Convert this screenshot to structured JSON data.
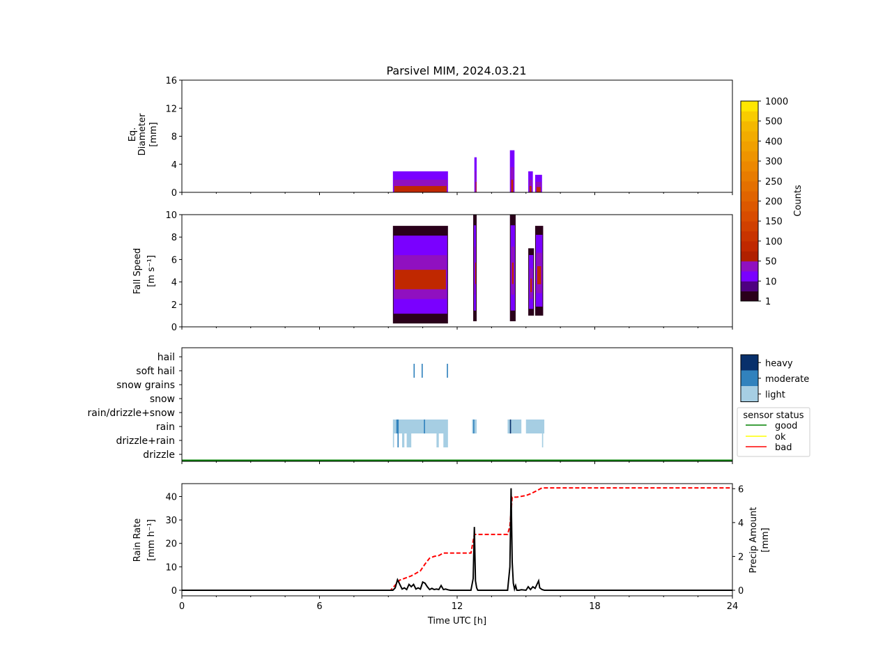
{
  "title": "Parsivel MIM, 2024.03.21",
  "xlabel": "Time UTC [h]",
  "colors": {
    "good": "#008000",
    "ok": "#ffff00",
    "bad": "#ff0000",
    "rain_rate_line": "#000000",
    "precip_line": "#ff0000"
  },
  "chart_data": [
    {
      "type": "heatmap",
      "name": "diameter",
      "ylabel_lines": [
        "Eq.",
        "Diameter",
        "[mm]"
      ],
      "xlim": [
        0,
        24
      ],
      "ylim": [
        0,
        16
      ],
      "xticks": [
        0,
        6,
        12,
        18,
        24
      ],
      "yticks": [
        0,
        4,
        8,
        12,
        16
      ],
      "blocks": [
        {
          "t0": 9.2,
          "t1": 11.6,
          "ymax": 3.0,
          "level": "moderate"
        },
        {
          "t0": 12.75,
          "t1": 12.85,
          "ymax": 5.0,
          "level": "moderate"
        },
        {
          "t0": 14.3,
          "t1": 14.5,
          "ymax": 6.0,
          "level": "moderate"
        },
        {
          "t0": 15.1,
          "t1": 15.3,
          "ymax": 3.0,
          "level": "moderate"
        },
        {
          "t0": 15.4,
          "t1": 15.7,
          "ymax": 2.5,
          "level": "moderate"
        }
      ]
    },
    {
      "type": "heatmap",
      "name": "fall_speed",
      "ylabel_lines": [
        "Fall Speed",
        "[m s⁻¹]"
      ],
      "xlim": [
        0,
        24
      ],
      "ylim": [
        0,
        10
      ],
      "xticks": [
        0,
        6,
        12,
        18,
        24
      ],
      "yticks": [
        0,
        2,
        4,
        6,
        8,
        10
      ],
      "blocks": [
        {
          "t0": 9.2,
          "t1": 11.6,
          "ymin": 0.3,
          "ymax": 9.0
        },
        {
          "t0": 12.7,
          "t1": 12.85,
          "ymin": 0.5,
          "ymax": 10.0
        },
        {
          "t0": 14.3,
          "t1": 14.55,
          "ymin": 0.5,
          "ymax": 10.0
        },
        {
          "t0": 15.1,
          "t1": 15.35,
          "ymin": 1.0,
          "ymax": 7.0
        },
        {
          "t0": 15.4,
          "t1": 15.75,
          "ymin": 1.0,
          "ymax": 9.0
        }
      ]
    },
    {
      "type": "heatmap",
      "name": "precip_type",
      "categories": [
        "drizzle",
        "drizzle+rain",
        "rain",
        "rain/drizzle+snow",
        "snow",
        "snow grains",
        "soft hail",
        "hail"
      ],
      "xlim": [
        0,
        24
      ],
      "xticks": [
        0,
        6,
        12,
        18,
        24
      ],
      "intensity_legend": [
        "heavy",
        "moderate",
        "light"
      ],
      "intensity_colors": {
        "heavy": "#08306b",
        "moderate": "#3182bd",
        "light": "#a6cee3"
      },
      "segments": [
        {
          "category": "rain",
          "t0": 9.2,
          "t1": 11.6,
          "level": "light"
        },
        {
          "category": "rain",
          "t0": 12.65,
          "t1": 12.85,
          "level": "light"
        },
        {
          "category": "rain",
          "t0": 14.2,
          "t1": 14.8,
          "level": "light"
        },
        {
          "category": "rain",
          "t0": 15.0,
          "t1": 15.8,
          "level": "light"
        },
        {
          "category": "rain",
          "t0": 9.35,
          "t1": 9.45,
          "level": "moderate"
        },
        {
          "category": "rain",
          "t0": 10.55,
          "t1": 10.6,
          "level": "moderate"
        },
        {
          "category": "rain",
          "t0": 12.7,
          "t1": 12.75,
          "level": "moderate"
        },
        {
          "category": "rain",
          "t0": 14.3,
          "t1": 14.35,
          "level": "heavy"
        },
        {
          "category": "drizzle+rain",
          "t0": 9.2,
          "t1": 9.25,
          "level": "light"
        },
        {
          "category": "drizzle+rain",
          "t0": 9.4,
          "t1": 9.45,
          "level": "moderate"
        },
        {
          "category": "drizzle+rain",
          "t0": 9.6,
          "t1": 9.7,
          "level": "light"
        },
        {
          "category": "drizzle+rain",
          "t0": 9.8,
          "t1": 10.0,
          "level": "light"
        },
        {
          "category": "drizzle+rain",
          "t0": 11.1,
          "t1": 11.2,
          "level": "light"
        },
        {
          "category": "drizzle+rain",
          "t0": 11.4,
          "t1": 11.6,
          "level": "light"
        },
        {
          "category": "drizzle+rain",
          "t0": 15.7,
          "t1": 15.75,
          "level": "light"
        },
        {
          "category": "soft hail",
          "t0": 10.1,
          "t1": 10.15,
          "level": "moderate"
        },
        {
          "category": "soft hail",
          "t0": 10.45,
          "t1": 10.5,
          "level": "moderate"
        },
        {
          "category": "soft hail",
          "t0": 11.55,
          "t1": 11.6,
          "level": "moderate"
        }
      ],
      "sensor_status": {
        "title": "sensor status",
        "entries": [
          "good",
          "ok",
          "bad"
        ],
        "value": "good"
      }
    },
    {
      "type": "line",
      "name": "rain",
      "ylabel_lines": [
        "Rain Rate",
        "[mm h⁻¹]"
      ],
      "y2label_lines": [
        "Precip Amount",
        "[mm]"
      ],
      "xlim": [
        0,
        24
      ],
      "ylim": [
        0,
        45.5
      ],
      "y2lim": [
        0,
        6.3
      ],
      "xticks": [
        0,
        6,
        12,
        18,
        24
      ],
      "yticks": [
        0,
        10,
        20,
        30,
        40
      ],
      "y2ticks": [
        0,
        2,
        4,
        6
      ],
      "rain_rate": {
        "x": [
          0,
          9.2,
          9.3,
          9.4,
          9.45,
          9.5,
          9.6,
          9.7,
          9.8,
          9.9,
          10.0,
          10.1,
          10.2,
          10.3,
          10.4,
          10.5,
          10.6,
          10.7,
          10.8,
          10.9,
          11.0,
          11.1,
          11.2,
          11.3,
          11.4,
          11.5,
          11.6,
          11.7,
          12.6,
          12.7,
          12.75,
          12.8,
          12.85,
          12.9,
          14.2,
          14.3,
          14.35,
          14.4,
          14.45,
          14.5,
          14.55,
          14.6,
          14.7,
          14.8,
          15.0,
          15.1,
          15.2,
          15.3,
          15.4,
          15.55,
          15.6,
          15.7,
          15.8,
          16.0,
          24
        ],
        "y": [
          0,
          0,
          1,
          4.5,
          3.5,
          2.5,
          0.5,
          1.0,
          0.3,
          2.5,
          1.5,
          2.5,
          0.5,
          1.0,
          0.5,
          3.5,
          3.0,
          1.5,
          0.3,
          0.8,
          0.3,
          0.5,
          0.3,
          2.0,
          0.3,
          0.5,
          0.2,
          0,
          0,
          5,
          27,
          4,
          1,
          0,
          0,
          10,
          43.5,
          12,
          3,
          0.5,
          2.0,
          0,
          0,
          0.2,
          0,
          1.5,
          0.3,
          1.5,
          0.8,
          4,
          1,
          0.3,
          0,
          0,
          0
        ]
      },
      "precip_amount": {
        "x": [
          0,
          9.1,
          9.3,
          9.5,
          9.8,
          10.0,
          10.2,
          10.4,
          10.6,
          10.8,
          11.0,
          11.2,
          11.4,
          11.6,
          12.0,
          12.6,
          12.75,
          12.85,
          14.2,
          14.3,
          14.4,
          14.6,
          15.0,
          15.2,
          15.5,
          15.7,
          16.0,
          24
        ],
        "y": [
          0,
          0,
          0.3,
          0.6,
          0.75,
          0.85,
          1.0,
          1.15,
          1.55,
          1.9,
          2.0,
          2.05,
          2.2,
          2.2,
          2.2,
          2.2,
          3.3,
          3.3,
          3.3,
          3.8,
          5.5,
          5.5,
          5.6,
          5.7,
          5.9,
          6.05,
          6.05,
          6.05
        ]
      }
    }
  ],
  "colorbar": {
    "label": "Counts",
    "ticks": [
      "1",
      "10",
      "50",
      "100",
      "150",
      "200",
      "250",
      "300",
      "400",
      "500",
      "1000"
    ],
    "colors": [
      "#2a001a",
      "#4e0080",
      "#7a00ff",
      "#9010c0",
      "#b02000",
      "#c02800",
      "#c83400",
      "#d04000",
      "#d84c00",
      "#dc5800",
      "#e06400",
      "#e47000",
      "#e87c00",
      "#ec8800",
      "#ee9400",
      "#f0a000",
      "#f2ac00",
      "#f4b800",
      "#f8cc00",
      "#ffe600"
    ]
  }
}
